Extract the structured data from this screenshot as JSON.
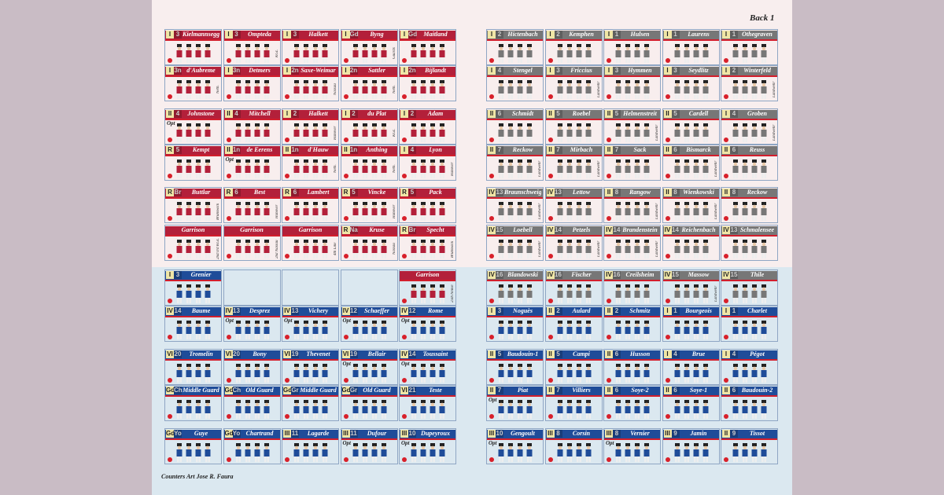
{
  "sheet_label": "Back 1",
  "credit": "Counters Art Jose R. Faura",
  "left_rows": [
    {
      "color": "#b3203a",
      "cells": [
        {
          "corps": "I",
          "div": "3",
          "name": "Kielmannsegge"
        },
        {
          "corps": "I",
          "div": "3",
          "name": "Ompteda",
          "note": "KGL"
        },
        {
          "corps": "I",
          "div": "3",
          "name": "Halkett"
        },
        {
          "corps": "I",
          "div": "Gd",
          "name": "Byng",
          "note": "Guards"
        },
        {
          "corps": "I",
          "div": "Gd",
          "name": "Maitland"
        }
      ]
    },
    {
      "color": "#b3203a",
      "cells": [
        {
          "corps": "I",
          "div": "3n",
          "name": "d'Aubreme",
          "note": "Neth."
        },
        {
          "corps": "I",
          "div": "3n",
          "name": "Detmers"
        },
        {
          "corps": "I",
          "div": "2n",
          "name": "Saxe-Weimar",
          "note": "Nassau"
        },
        {
          "corps": "I",
          "div": "2n",
          "name": "Sattler",
          "note": "Neth."
        },
        {
          "corps": "I",
          "div": "2n",
          "name": "Bijlandt"
        }
      ]
    },
    {
      "color": "#b3203a",
      "cells": [
        {
          "corps": "II",
          "div": "4",
          "name": "Johnstone",
          "side": "Opt"
        },
        {
          "corps": "II",
          "div": "4",
          "name": "Mitchell"
        },
        {
          "corps": "I",
          "div": "2",
          "name": "Halkett",
          "note": "Hanover"
        },
        {
          "corps": "I",
          "div": "2",
          "name": "du Plat",
          "note": "KGL"
        },
        {
          "corps": "I",
          "div": "2",
          "name": "Adam"
        }
      ]
    },
    {
      "color": "#b3203a",
      "cells": [
        {
          "corps": "R",
          "div": "5",
          "name": "Kempt"
        },
        {
          "corps": "II",
          "div": "1n",
          "name": "de Eerens",
          "side": "Opt"
        },
        {
          "corps": "II",
          "div": "1n",
          "name": "d'Hauw",
          "note": "Neth."
        },
        {
          "corps": "II",
          "div": "1n",
          "name": "Anthing",
          "note": "Neth."
        },
        {
          "corps": "I",
          "div": "4",
          "name": "Lyon",
          "note": "Hanover"
        }
      ]
    },
    {
      "color": "#b3203a",
      "cells": [
        {
          "corps": "R",
          "div": "Br",
          "name": "Buttlar",
          "note": "Brunswick"
        },
        {
          "corps": "R",
          "div": "6",
          "name": "Best",
          "note": "Hanover"
        },
        {
          "corps": "R",
          "div": "6",
          "name": "Lambert"
        },
        {
          "corps": "R",
          "div": "5",
          "name": "Vincke",
          "note": "Hanover"
        },
        {
          "corps": "R",
          "div": "5",
          "name": "Pack"
        }
      ]
    },
    {
      "color": "#b3203a",
      "cells": [
        {
          "name": "Garrison",
          "note": "2nd/3rd KGL"
        },
        {
          "name": "Garrison",
          "note": "2nd Nassau"
        },
        {
          "name": "Garrison",
          "note": "4th Line"
        },
        {
          "corps": "R",
          "div": "Na",
          "name": "Kruse",
          "note": "Nassau"
        },
        {
          "corps": "R",
          "div": "Br",
          "name": "Specht",
          "note": "Brunswick"
        }
      ]
    },
    {
      "color": "#1f4c99",
      "cells": [
        {
          "corps": "I",
          "div": "3",
          "name": "Grenier"
        },
        null,
        null,
        null,
        {
          "name": "Garrison",
          "note": "25th Neuve",
          "color": "#b3203a"
        }
      ]
    },
    {
      "color": "#1f4c99",
      "cells": [
        {
          "corps": "IV",
          "div": "14",
          "name": "Baume"
        },
        {
          "corps": "IV",
          "div": "13",
          "name": "Desprez",
          "side": "Opt"
        },
        {
          "corps": "IV",
          "div": "13",
          "name": "Vichery",
          "side": "Opt"
        },
        {
          "corps": "IV",
          "div": "12",
          "name": "Schaeffer",
          "side": "Opt"
        },
        {
          "corps": "IV",
          "div": "12",
          "name": "Rome",
          "side": "Opt"
        }
      ]
    },
    {
      "color": "#1f4c99",
      "cells": [
        {
          "corps": "VI",
          "div": "20",
          "name": "Tromelin"
        },
        {
          "corps": "VI",
          "div": "20",
          "name": "Bony"
        },
        {
          "corps": "VI",
          "div": "19",
          "name": "Thevenet"
        },
        {
          "corps": "VI",
          "div": "19",
          "name": "Bellair",
          "side": "Opt"
        },
        {
          "corps": "IV",
          "div": "14",
          "name": "Toussaint",
          "side": "Opt"
        }
      ]
    },
    {
      "color": "#1f4c99",
      "cells": [
        {
          "corps": "Gd",
          "div": "Ch",
          "name": "Middle Guard"
        },
        {
          "corps": "Gd",
          "div": "Ch",
          "name": "Old Guard"
        },
        {
          "corps": "Gd",
          "div": "Gr",
          "name": "Middle Guard"
        },
        {
          "corps": "Gd",
          "div": "Gr",
          "name": "Old Guard"
        },
        {
          "corps": "VI",
          "div": "21",
          "name": "Teste"
        }
      ]
    },
    {
      "color": "#1f4c99",
      "cells": [
        {
          "corps": "Gd",
          "div": "Yo",
          "name": "Guye"
        },
        {
          "corps": "Gd",
          "div": "Yo",
          "name": "Chartrand"
        },
        {
          "corps": "III",
          "div": "11",
          "name": "Lagarde"
        },
        {
          "corps": "III",
          "div": "11",
          "name": "Dufour",
          "side": "Opt"
        },
        {
          "corps": "III",
          "div": "10",
          "name": "Dupeyroux",
          "side": "Opt"
        }
      ]
    }
  ],
  "right_rows": [
    {
      "color": "#777777",
      "cells": [
        {
          "corps": "I",
          "div": "2",
          "name": "Hictenbach"
        },
        {
          "corps": "I",
          "div": "2",
          "name": "Kemphen"
        },
        {
          "corps": "I",
          "div": "1",
          "name": "Hulsen"
        },
        {
          "corps": "I",
          "div": "1",
          "name": "Laurens"
        },
        {
          "corps": "I",
          "div": "1",
          "name": "Othegraven"
        }
      ]
    },
    {
      "color": "#777777",
      "cells": [
        {
          "corps": "I",
          "div": "4",
          "name": "Stengel"
        },
        {
          "corps": "I",
          "div": "3",
          "name": "Friccius",
          "note": "Landwehr"
        },
        {
          "corps": "I",
          "div": "3",
          "name": "Hymmen"
        },
        {
          "corps": "I",
          "div": "3",
          "name": "Seydlitz"
        },
        {
          "corps": "I",
          "div": "2",
          "name": "Winterfeld",
          "note": "Landwehr"
        }
      ]
    },
    {
      "color": "#777777",
      "cells": [
        {
          "corps": "II",
          "div": "6",
          "name": "Schmidt"
        },
        {
          "corps": "II",
          "div": "5",
          "name": "Roebel"
        },
        {
          "corps": "II",
          "div": "5",
          "name": "Helmenstreit",
          "note": "Landwehr"
        },
        {
          "corps": "II",
          "div": "5",
          "name": "Cardell"
        },
        {
          "corps": "I",
          "div": "4",
          "name": "Groben",
          "note": "Landwehr"
        }
      ]
    },
    {
      "color": "#777777",
      "cells": [
        {
          "corps": "II",
          "div": "7",
          "name": "Reckow",
          "note": "Landwehr"
        },
        {
          "corps": "II",
          "div": "7",
          "name": "Mirbach",
          "note": "Landwehr"
        },
        {
          "corps": "II",
          "div": "7",
          "name": "Sack"
        },
        {
          "corps": "II",
          "div": "6",
          "name": "Bismarck",
          "note": "Landwehr"
        },
        {
          "corps": "II",
          "div": "6",
          "name": "Reuss"
        }
      ]
    },
    {
      "color": "#777777",
      "cells": [
        {
          "corps": "IV",
          "div": "13",
          "name": "Braunschweig",
          "note": "Landwehr"
        },
        {
          "corps": "IV",
          "div": "13",
          "name": "Lettow"
        },
        {
          "corps": "II",
          "div": "8",
          "name": "Rangow",
          "note": "Landwehr"
        },
        {
          "corps": "II",
          "div": "8",
          "name": "Wienkowski",
          "note": "Landwehr"
        },
        {
          "corps": "II",
          "div": "8",
          "name": "Reckow"
        }
      ]
    },
    {
      "color": "#777777",
      "cells": [
        {
          "corps": "IV",
          "div": "15",
          "name": "Loebell",
          "note": "Landwehr"
        },
        {
          "corps": "IV",
          "div": "14",
          "name": "Petzels",
          "note": "Landwehr"
        },
        {
          "corps": "IV",
          "div": "14",
          "name": "Brandenstein",
          "note": "Landwehr"
        },
        {
          "corps": "IV",
          "div": "14",
          "name": "Reichenbach"
        },
        {
          "corps": "IV",
          "div": "13",
          "name": "Schmalensee"
        }
      ]
    },
    {
      "color": "#777777",
      "cells": [
        {
          "corps": "IV",
          "div": "16",
          "name": "Blandowski"
        },
        {
          "corps": "IV",
          "div": "16",
          "name": "Fischer"
        },
        {
          "corps": "IV",
          "div": "16",
          "name": "Creilsheim"
        },
        {
          "corps": "IV",
          "div": "15",
          "name": "Massow",
          "note": "Landwehr"
        },
        {
          "corps": "IV",
          "div": "15",
          "name": "Thile"
        }
      ]
    },
    {
      "color": "#1f4c99",
      "cells": [
        {
          "corps": "I",
          "div": "3",
          "name": "Noguès"
        },
        {
          "corps": "II",
          "div": "2",
          "name": "Aulard"
        },
        {
          "corps": "II",
          "div": "2",
          "name": "Schmitz"
        },
        {
          "corps": "I",
          "div": "1",
          "name": "Bourgeois"
        },
        {
          "corps": "I",
          "div": "1",
          "name": "Charlet"
        }
      ]
    },
    {
      "color": "#1f4c99",
      "cells": [
        {
          "corps": "II",
          "div": "5",
          "name": "Baudouin-1"
        },
        {
          "corps": "II",
          "div": "5",
          "name": "Campi"
        },
        {
          "corps": "II",
          "div": "6",
          "name": "Husson"
        },
        {
          "corps": "I",
          "div": "4",
          "name": "Brue"
        },
        {
          "corps": "I",
          "div": "4",
          "name": "Pégot"
        }
      ]
    },
    {
      "color": "#1f4c99",
      "cells": [
        {
          "corps": "II",
          "div": "7",
          "name": "Piat",
          "side": "Opt"
        },
        {
          "corps": "II",
          "div": "7",
          "name": "Villiers"
        },
        {
          "corps": "II",
          "div": "6",
          "name": "Soye-2"
        },
        {
          "corps": "II",
          "div": "6",
          "name": "Soye-1"
        },
        {
          "corps": "II",
          "div": "6",
          "name": "Baudouin-2"
        }
      ]
    },
    {
      "color": "#1f4c99",
      "cells": [
        {
          "corps": "III",
          "div": "10",
          "name": "Gengoult",
          "side": "Opt"
        },
        {
          "corps": "III",
          "div": "8",
          "name": "Corsin"
        },
        {
          "corps": "III",
          "div": "8",
          "name": "Vernier",
          "side": "Opt"
        },
        {
          "corps": "III",
          "div": "9",
          "name": "Jamin"
        },
        {
          "corps": "II",
          "div": "9",
          "name": "Tissot"
        }
      ]
    }
  ]
}
